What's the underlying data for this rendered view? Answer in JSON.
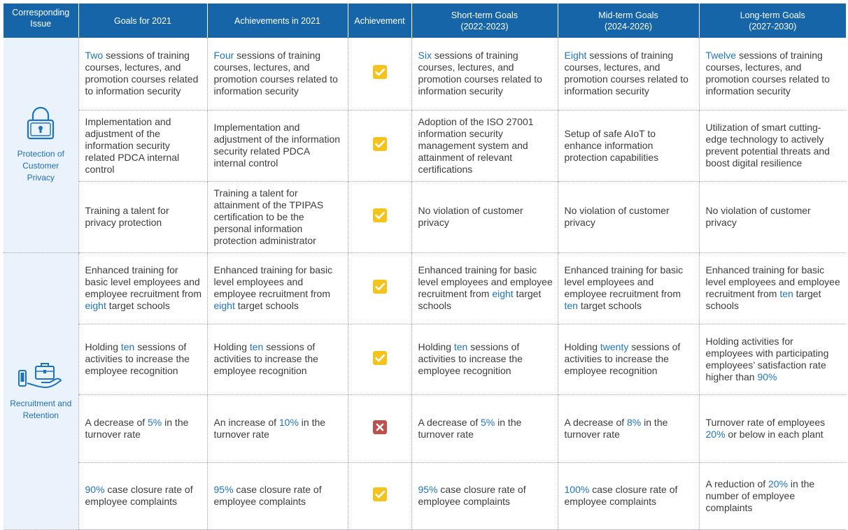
{
  "headers": {
    "issue": "Corresponding Issue",
    "goals2021": "Goals for 2021",
    "ach2021": "Achievements in 2021",
    "achievement": "Achievement",
    "short": "Short-term Goals (2022-2023)",
    "mid": "Mid-term Goals (2024-2026)",
    "long": "Long-term Goals (2027-2030)"
  },
  "issues": {
    "privacy": "Protection of Customer Privacy",
    "recruitment": "Recruitment and Retention"
  },
  "icons": {
    "privacy": "padlock-icon",
    "recruitment": "briefcase-hand-phone-icon",
    "achieved": "checkmark-icon",
    "not_achieved": "x-mark-icon"
  },
  "colors": {
    "header_bg": "#1565a8",
    "highlight": "#1e73be",
    "check": "#f4c31c",
    "cross": "#c0504d"
  },
  "rows": [
    {
      "status": "achieved",
      "g2021": {
        "hl": "Two",
        "t": " sessions of training courses, lectures, and promotion courses related to information security"
      },
      "a2021": {
        "hl": "Four",
        "t": " sessions of training courses, lectures, and promotion courses related to information security"
      },
      "short": {
        "hl": "Six",
        "t": " sessions of training courses, lectures, and promotion courses related to information security"
      },
      "mid": {
        "hl": "Eight",
        "t": " sessions of training courses, lectures, and promotion courses related to information security"
      },
      "long": {
        "hl": "Twelve",
        "t": " sessions of training courses, lectures, and promotion courses related to information security"
      }
    },
    {
      "status": "achieved",
      "g2021": {
        "t": "Implementation and adjustment of the information security related PDCA internal control"
      },
      "a2021": {
        "t": "Implementation and adjustment of the information security related PDCA internal control"
      },
      "short": {
        "t": "Adoption of the ISO 27001 information security management system and attainment of relevant certifications"
      },
      "mid": {
        "t": "Setup of safe AIoT to enhance information protection capabilities"
      },
      "long": {
        "t": "Utilization of smart cutting-edge technology to actively prevent potential threats and boost digital resilience"
      }
    },
    {
      "status": "achieved",
      "g2021": {
        "t": "Training a talent for privacy protection"
      },
      "a2021": {
        "t": "Training a talent for attainment of the TPIPAS certification to be the personal information protection administrator"
      },
      "short": {
        "t": "No violation of customer privacy"
      },
      "mid": {
        "t": "No violation of customer privacy"
      },
      "long": {
        "t": "No violation of customer privacy"
      }
    },
    {
      "status": "achieved",
      "g2021": {
        "t": "Enhanced training for basic level employees and employee recruitment from ",
        "hl": "eight",
        "t2": " target schools"
      },
      "a2021": {
        "t": "Enhanced training for basic level employees and employee recruitment from ",
        "hl": "eight",
        "t2": " target schools"
      },
      "short": {
        "t": "Enhanced training for basic level employees and employee recruitment from ",
        "hl": "eight",
        "t2": " target schools"
      },
      "mid": {
        "t": "Enhanced training for basic level employees and employee recruitment from ",
        "hl": "ten",
        "t2": " target schools"
      },
      "long": {
        "t": "Enhanced training for basic level employees and employee recruitment from ",
        "hl": "ten",
        "t2": " target schools"
      }
    },
    {
      "status": "achieved",
      "g2021": {
        "t": "Holding ",
        "hl": "ten",
        "t2": " sessions of activities to increase the employee recognition"
      },
      "a2021": {
        "t": "Holding ",
        "hl": "ten",
        "t2": " sessions of activities to increase the employee recognition"
      },
      "short": {
        "t": "Holding ",
        "hl": "ten",
        "t2": " sessions of activities to increase the employee recognition"
      },
      "mid": {
        "t": "Holding ",
        "hl": "twenty",
        "t2": " sessions of activities to increase the employee recognition"
      },
      "long": {
        "t": "Holding activities for employees with participating employees’ satisfaction rate higher than ",
        "hl": "90%",
        "t2": ""
      }
    },
    {
      "status": "not_achieved",
      "g2021": {
        "t": "A decrease of ",
        "hl": "5%",
        "t2": " in the turnover rate"
      },
      "a2021": {
        "t": "An increase of ",
        "hl": "10%",
        "t2": " in the turnover rate"
      },
      "short": {
        "t": "A decrease of ",
        "hl": "5%",
        "t2": " in the turnover rate"
      },
      "mid": {
        "t": "A decrease of ",
        "hl": "8%",
        "t2": " in the turnover rate"
      },
      "long": {
        "t": "Turnover rate of employees ",
        "hl": "20%",
        "t2": " or below in each plant"
      }
    },
    {
      "status": "achieved",
      "g2021": {
        "hl": "90%",
        "t": " case closure rate of employee complaints"
      },
      "a2021": {
        "hl": "95%",
        "t": " case closure rate of employee complaints"
      },
      "short": {
        "hl": "95%",
        "t": " case closure rate of employee complaints"
      },
      "mid": {
        "hl": "100%",
        "t": " case closure rate of employee complaints"
      },
      "long": {
        "t": "A reduction of ",
        "hl": "20%",
        "t2": " in the number of employee complaints"
      }
    }
  ]
}
